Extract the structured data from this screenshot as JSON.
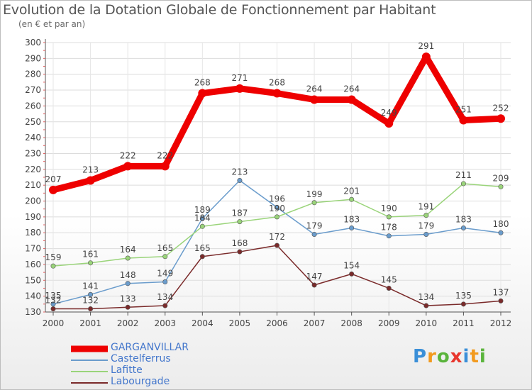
{
  "title": "Evolution de la Dotation Globale de Fonctionnement par Habitant",
  "subtitle": "(en € et par an)",
  "logo": {
    "text": "Proxiti",
    "colors": [
      "#3a8fd8",
      "#f29a1e",
      "#5ab43c",
      "#e8362d",
      "#3a8fd8",
      "#f29a1e",
      "#5ab43c"
    ]
  },
  "chart_data": {
    "type": "line",
    "x": [
      "2000",
      "2001",
      "2002",
      "2003",
      "2004",
      "2005",
      "2006",
      "2007",
      "2008",
      "2009",
      "2010",
      "2011",
      "2012"
    ],
    "ylim": [
      130,
      300
    ],
    "yticks": [
      130,
      140,
      150,
      160,
      170,
      180,
      190,
      200,
      210,
      220,
      230,
      240,
      250,
      260,
      270,
      280,
      290,
      300
    ],
    "grid": true,
    "series": [
      {
        "name": "GARGANVILLAR",
        "color": "#ee0000",
        "values": [
          207,
          213,
          222,
          222,
          268,
          271,
          268,
          264,
          264,
          249,
          291,
          251,
          252
        ]
      },
      {
        "name": "Castelferrus",
        "color": "#6a9ccc",
        "values": [
          135,
          141,
          148,
          149,
          189,
          213,
          196,
          179,
          183,
          178,
          179,
          183,
          180
        ]
      },
      {
        "name": "Lafitte",
        "color": "#9ad47a",
        "values": [
          159,
          161,
          164,
          165,
          184,
          187,
          190,
          199,
          201,
          190,
          191,
          211,
          209
        ]
      },
      {
        "name": "Labourgade",
        "color": "#7a2a2a",
        "values": [
          132,
          132,
          133,
          134,
          165,
          168,
          172,
          147,
          154,
          145,
          134,
          135,
          137
        ]
      }
    ]
  }
}
